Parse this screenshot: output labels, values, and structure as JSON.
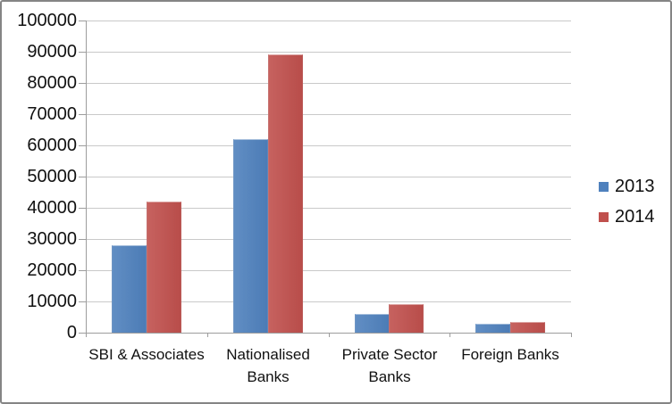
{
  "chart_data": {
    "type": "bar",
    "title": "",
    "xlabel": "",
    "ylabel": "",
    "categories": [
      "SBI & Associates",
      "Nationalised Banks",
      "Private Sector Banks",
      "Foreign Banks"
    ],
    "series": [
      {
        "name": "2013",
        "color": "#4F81BD",
        "values": [
          28000,
          62000,
          6000,
          2800
        ]
      },
      {
        "name": "2014",
        "color": "#C0504D",
        "values": [
          42000,
          89000,
          9000,
          3500
        ]
      }
    ],
    "ylim": [
      0,
      100000
    ],
    "ytick_step": 10000,
    "ytick_labels": [
      "0",
      "10000",
      "20000",
      "30000",
      "40000",
      "50000",
      "60000",
      "70000",
      "80000",
      "90000",
      "100000"
    ],
    "grid": "horizontal",
    "legend_position": "right"
  },
  "colors": {
    "series_2013": "#4F81BD",
    "series_2014": "#C0504D",
    "gridline": "#C9C9C9",
    "axis": "#9D9D9D",
    "text": "#111111",
    "frame_border": "#858585",
    "background": "#FFFFFF"
  }
}
